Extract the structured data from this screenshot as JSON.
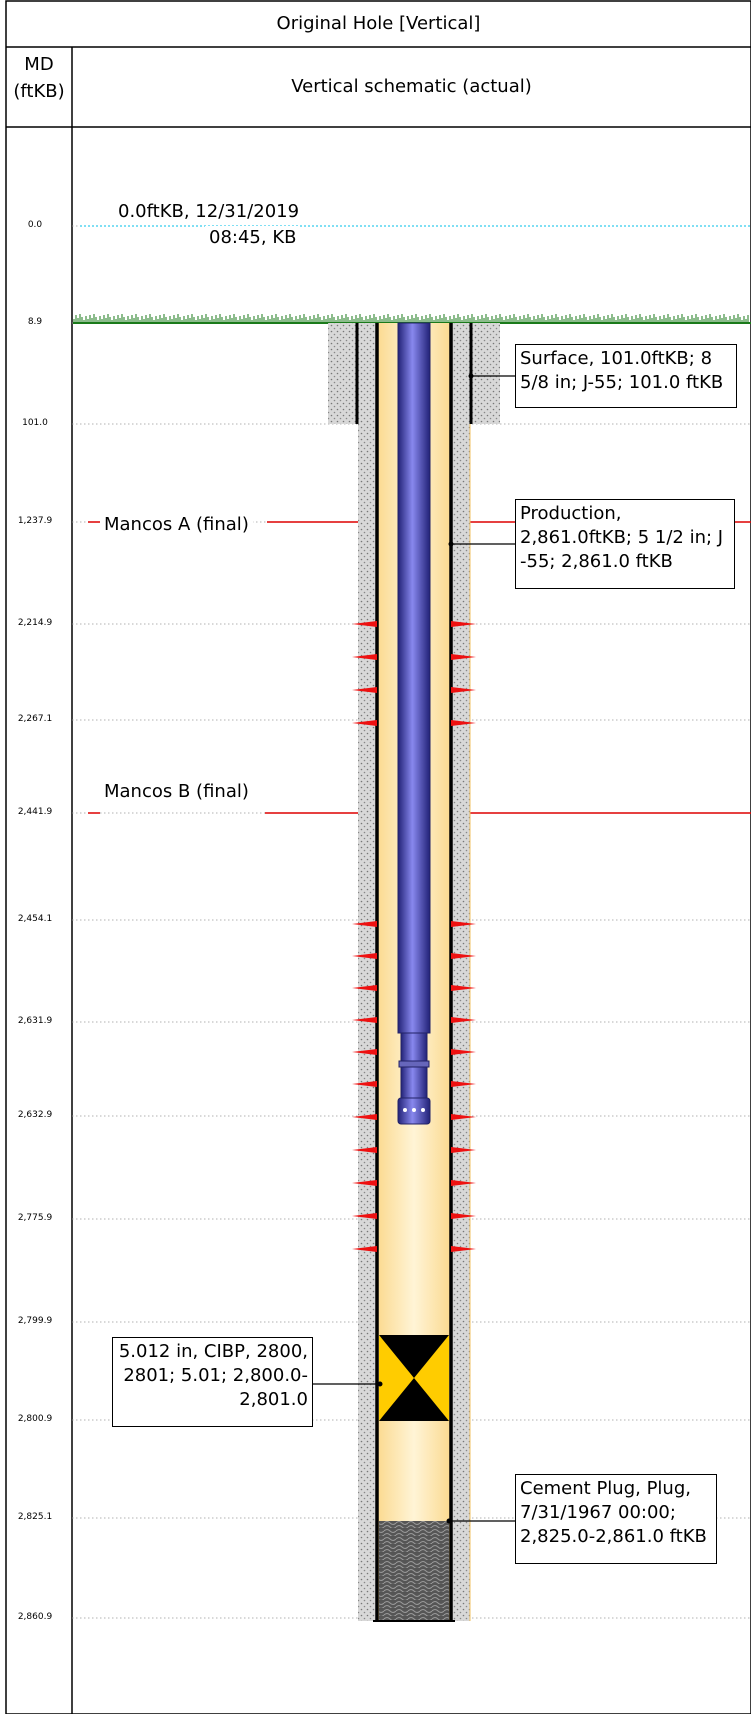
{
  "header": {
    "title": "Original Hole [Vertical]",
    "md_label_line1": "MD",
    "md_label_line2": "(ftKB)",
    "schematic_title": "Vertical schematic (actual)"
  },
  "depth_marks": [
    {
      "label": "0.0"
    },
    {
      "label": "8.9"
    },
    {
      "label": "101.0"
    },
    {
      "label": "1,237.9"
    },
    {
      "label": "2,214.9"
    },
    {
      "label": "2,267.1"
    },
    {
      "label": "2,441.9"
    },
    {
      "label": "2,454.1"
    },
    {
      "label": "2,631.9"
    },
    {
      "label": "2,632.9"
    },
    {
      "label": "2,775.9"
    },
    {
      "label": "2,799.9"
    },
    {
      "label": "2,800.9"
    },
    {
      "label": "2,825.1"
    },
    {
      "label": "2,860.9"
    }
  ],
  "datum": {
    "line1": "0.0ftKB, 12/31/2019",
    "line2": "08:45, KB"
  },
  "formations": [
    {
      "label": "Mancos A (final)"
    },
    {
      "label": "Mancos B (final)"
    }
  ],
  "callouts": {
    "surface": {
      "line1": "Surface, 101.0ftKB; 8",
      "line2": "5/8 in; J-55; 101.0 ftKB"
    },
    "production": {
      "line1": "Production,",
      "line2": "2,861.0ftKB; 5 1/2 in; J",
      "line3": "-55; 2,861.0 ftKB"
    },
    "cibp": {
      "line1": "5.012 in, CIBP, 2800,",
      "line2": "2801; 5.01; 2,800.0-",
      "line3": "2,801.0"
    },
    "cement_plug": {
      "line1": "Cement Plug, Plug,",
      "line2": "7/31/1967 00:00;",
      "line3": "2,825.0-2,861.0 ftKB"
    }
  },
  "colors": {
    "ground": "#1a7a1a",
    "datum_line": "#33ccee",
    "formation_line": "#dd0000",
    "perforation": "#ee1111",
    "tubing": "#4444bb",
    "wellbore_fill": "#fde7b0",
    "cement": "#cccccc",
    "plug": "#ffcc00"
  }
}
